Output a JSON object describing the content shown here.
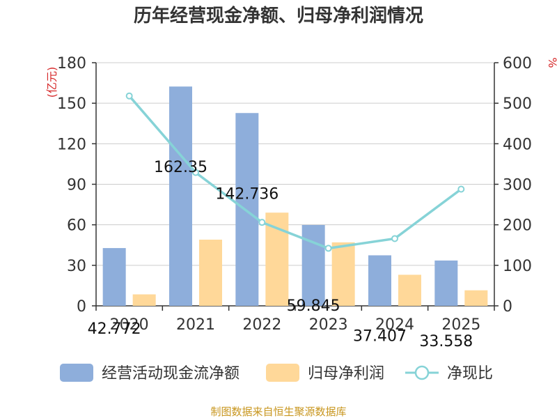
{
  "chart_data": {
    "type": "bar+line",
    "title": "历年经营现金净额、归母净利润情况",
    "categories": [
      "2020",
      "2021",
      "2022",
      "2023",
      "2024",
      "2025"
    ],
    "series": [
      {
        "name": "经营活动现金流净额",
        "type": "bar",
        "axis": "left",
        "values": [
          42.772,
          162.35,
          142.736,
          59.845,
          37.407,
          33.558
        ],
        "labels": [
          "42.772",
          "162.35",
          "142.736",
          "59.845",
          "37.407",
          "33.558"
        ],
        "color": "#8eaedb"
      },
      {
        "name": "归母净利润",
        "type": "bar",
        "axis": "left",
        "values": [
          8.5,
          49,
          69,
          47,
          23,
          11.5
        ],
        "color": "#ffd899"
      },
      {
        "name": "净现比",
        "type": "line",
        "axis": "right",
        "values": [
          518,
          329,
          206,
          142,
          166,
          288
        ],
        "color": "#86d3d7"
      }
    ],
    "left_axis": {
      "unit": "(亿元)",
      "min": 0,
      "max": 180,
      "ticks": [
        "0",
        "30",
        "60",
        "90",
        "120",
        "150",
        "180"
      ]
    },
    "right_axis": {
      "unit": "%",
      "min": 0,
      "max": 600,
      "ticks": [
        "0",
        "100",
        "200",
        "300",
        "400",
        "500",
        "600"
      ]
    },
    "legend_position": "bottom",
    "grid": true
  },
  "source_note": "制图数据来自恒生聚源数据库"
}
